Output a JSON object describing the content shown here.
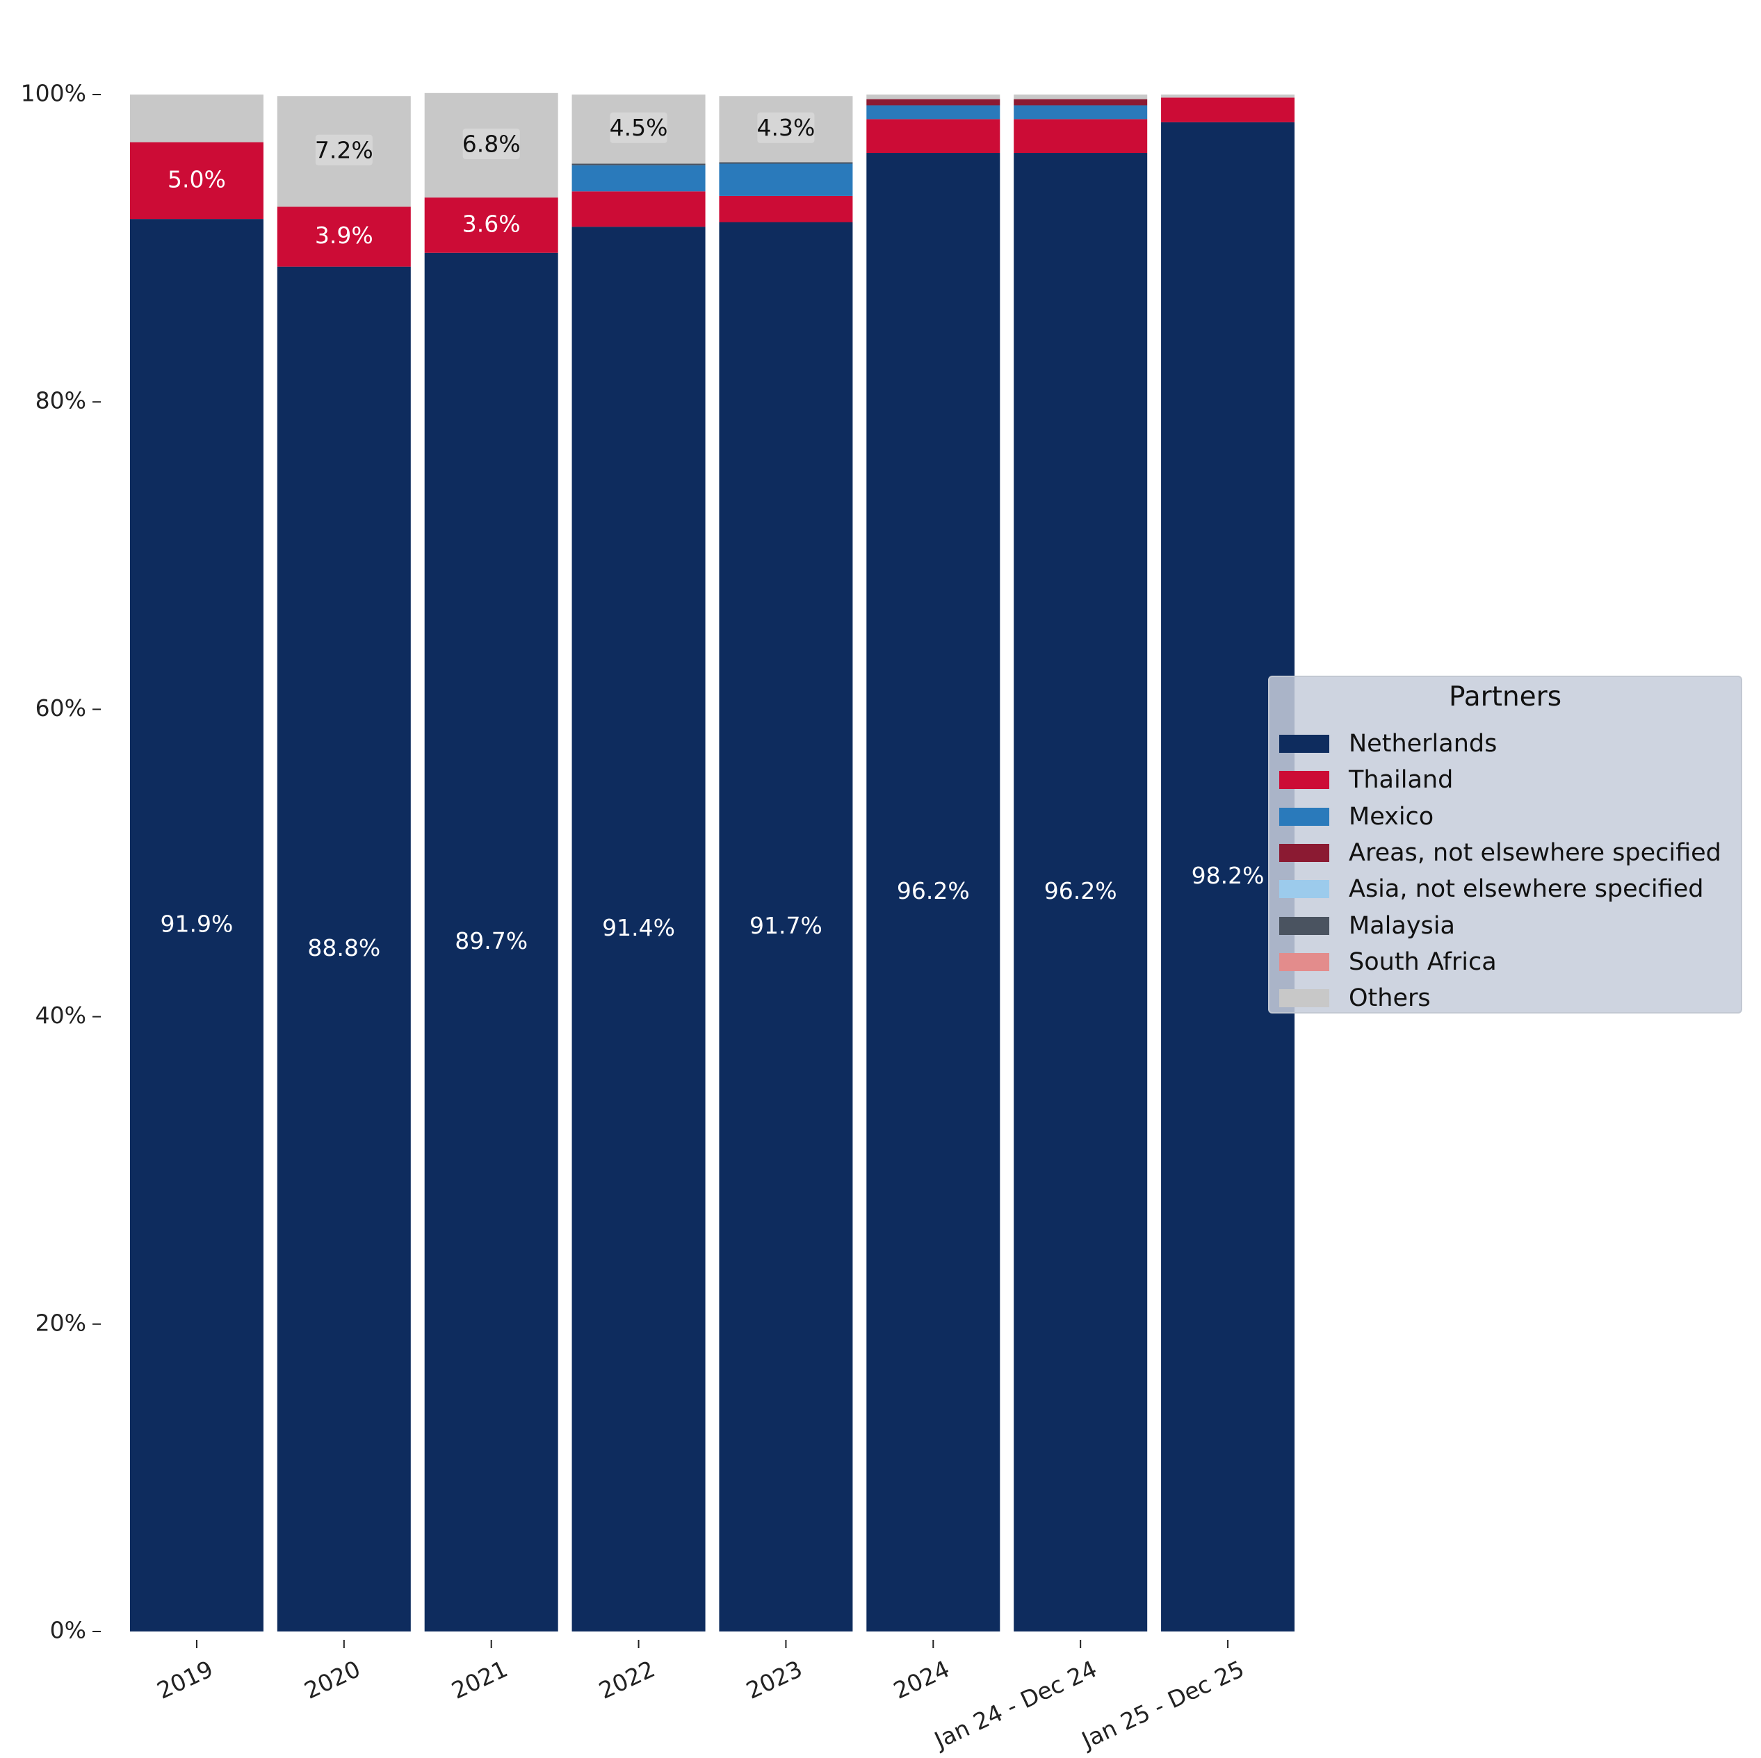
{
  "chart_data": {
    "type": "bar",
    "stacked": true,
    "categories": [
      "2019",
      "2020",
      "2021",
      "2022",
      "2023",
      "2024",
      "Jan 24 - Dec 24",
      "Jan 25 - Dec 25"
    ],
    "series": [
      {
        "name": "Netherlands",
        "color": "#0e2c5e",
        "values": [
          91.9,
          88.8,
          89.7,
          91.4,
          91.7,
          96.2,
          96.2,
          98.2
        ],
        "label_color": "#ffffff"
      },
      {
        "name": "Thailand",
        "color": "#cc0c36",
        "values": [
          5.0,
          3.9,
          3.6,
          2.3,
          1.7,
          2.2,
          2.2,
          1.6
        ],
        "label_color": "#ffffff"
      },
      {
        "name": "Mexico",
        "color": "#2a7abb",
        "values": [
          0.0,
          0.0,
          0.0,
          1.7,
          2.1,
          0.9,
          0.9,
          0.0
        ],
        "label_color": "#ffffff"
      },
      {
        "name": "Areas, not elsewhere specified",
        "color": "#8b1a32",
        "values": [
          0.0,
          0.0,
          0.0,
          0.0,
          0.0,
          0.4,
          0.4,
          0.0
        ],
        "label_color": "#ffffff"
      },
      {
        "name": "Asia, not elsewhere specified",
        "color": "#9ccbec",
        "values": [
          0.0,
          0.0,
          0.0,
          0.0,
          0.0,
          0.0,
          0.0,
          0.0
        ],
        "label_color": "#111111"
      },
      {
        "name": "Malaysia",
        "color": "#4a5360",
        "values": [
          0.0,
          0.0,
          0.0,
          0.1,
          0.1,
          0.0,
          0.0,
          0.0
        ],
        "label_color": "#ffffff"
      },
      {
        "name": "South Africa",
        "color": "#e38c8c",
        "values": [
          0.0,
          0.0,
          0.0,
          0.0,
          0.0,
          0.0,
          0.0,
          0.0
        ],
        "label_color": "#111111"
      },
      {
        "name": "Others",
        "color": "#c8c8c8",
        "values": [
          3.1,
          7.2,
          6.8,
          4.5,
          4.3,
          0.3,
          0.3,
          0.2
        ],
        "label_color": "#111111"
      }
    ],
    "data_labels": [
      {
        "category": "2019",
        "series": "Netherlands",
        "text": "91.9%"
      },
      {
        "category": "2019",
        "series": "Thailand",
        "text": "5.0%"
      },
      {
        "category": "2020",
        "series": "Netherlands",
        "text": "88.8%"
      },
      {
        "category": "2020",
        "series": "Thailand",
        "text": "3.9%"
      },
      {
        "category": "2020",
        "series": "Others",
        "text": "7.2%"
      },
      {
        "category": "2021",
        "series": "Netherlands",
        "text": "89.7%"
      },
      {
        "category": "2021",
        "series": "Thailand",
        "text": "3.6%"
      },
      {
        "category": "2021",
        "series": "Others",
        "text": "6.8%"
      },
      {
        "category": "2022",
        "series": "Netherlands",
        "text": "91.4%"
      },
      {
        "category": "2022",
        "series": "Others",
        "text": "4.5%"
      },
      {
        "category": "2023",
        "series": "Netherlands",
        "text": "91.7%"
      },
      {
        "category": "2023",
        "series": "Others",
        "text": "4.3%"
      },
      {
        "category": "2024",
        "series": "Netherlands",
        "text": "96.2%"
      },
      {
        "category": "Jan 24 - Dec 24",
        "series": "Netherlands",
        "text": "96.2%"
      },
      {
        "category": "Jan 25 - Dec 25",
        "series": "Netherlands",
        "text": "98.2%"
      }
    ],
    "yticks": [
      0,
      20,
      40,
      60,
      80,
      100
    ],
    "ytick_labels": [
      "0%",
      "20%",
      "40%",
      "60%",
      "80%",
      "100%"
    ],
    "ylim": [
      0,
      100
    ],
    "grid": false,
    "legend": {
      "title": "Partners",
      "placement": "right"
    }
  }
}
